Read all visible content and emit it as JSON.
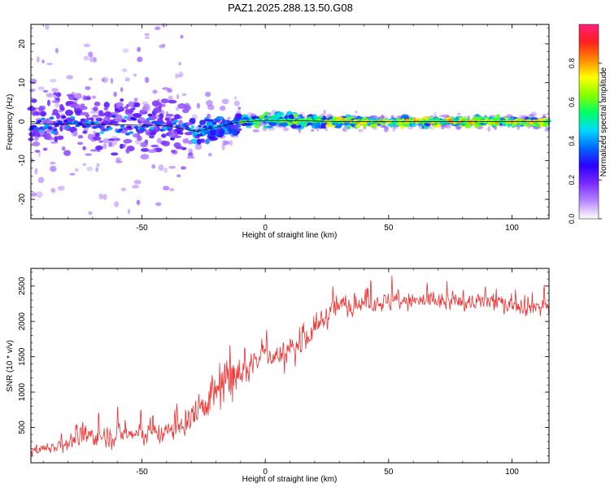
{
  "title": "PAZ1.2025.288.13.50.G08",
  "chart_data": [
    {
      "type": "heatmap",
      "title": "",
      "xlabel": "Height of straight line (km)",
      "ylabel": "Frequency (Hz)",
      "xlim": [
        -95,
        115
      ],
      "ylim": [
        -25,
        25
      ],
      "x_ticks": [
        -50,
        0,
        50,
        100
      ],
      "y_ticks": [
        -20,
        -10,
        0,
        10,
        20
      ],
      "colorbar": {
        "label": "Normalized spectral amplitude",
        "range": [
          0,
          1
        ],
        "ticks": [
          0.0,
          0.2,
          0.4,
          0.6,
          0.8
        ],
        "tick_labels": [
          "0.0",
          "0.2",
          "0.4",
          "0.6",
          "0.8"
        ],
        "colors": [
          "#ffffff",
          "#b787ff",
          "#7a2cff",
          "#2b00ff",
          "#0066ff",
          "#00d9ff",
          "#00ff66",
          "#88ff00",
          "#ffff00",
          "#ff8a00",
          "#ff1f1f",
          "#ff1f7a"
        ]
      },
      "trace_line": [
        [
          -95,
          -0.5
        ],
        [
          -40,
          -1.0
        ],
        [
          -28,
          -2.5
        ],
        [
          -20,
          -1.5
        ],
        [
          -12,
          -0.2
        ],
        [
          0,
          0.3
        ],
        [
          15,
          0.2
        ],
        [
          30,
          0
        ],
        [
          115,
          0
        ]
      ],
      "bands": [
        {
          "x_range": [
            -95,
            -30
          ],
          "y_spread": 8,
          "scatter_spread": 22,
          "amplitude": 0.25
        },
        {
          "x_range": [
            -30,
            -10
          ],
          "y_spread": 3,
          "scatter_spread": 6,
          "amplitude": 0.5
        },
        {
          "x_range": [
            -10,
            25
          ],
          "y_spread": 1.5,
          "scatter_spread": 2,
          "amplitude": 0.7
        },
        {
          "x_range": [
            25,
            115
          ],
          "y_spread": 1.0,
          "scatter_spread": 1.5,
          "amplitude": 0.85
        }
      ]
    },
    {
      "type": "line",
      "title": "",
      "xlabel": "Height of straight line (km)",
      "ylabel": "SNR (10 * v/v)",
      "xlim": [
        -95,
        115
      ],
      "ylim": [
        0,
        2750
      ],
      "x_ticks": [
        -50,
        0,
        50,
        100
      ],
      "y_ticks": [
        500,
        1000,
        1500,
        2000,
        2500
      ],
      "series": [
        {
          "name": "SNR",
          "color": "#ee3030",
          "envelope": [
            {
              "x": -95,
              "mean": 150,
              "noise": 120
            },
            {
              "x": -85,
              "mean": 250,
              "noise": 200
            },
            {
              "x": -70,
              "mean": 380,
              "noise": 300
            },
            {
              "x": -55,
              "mean": 400,
              "noise": 300
            },
            {
              "x": -40,
              "mean": 430,
              "noise": 300
            },
            {
              "x": -32,
              "mean": 550,
              "noise": 400
            },
            {
              "x": -25,
              "mean": 850,
              "noise": 500
            },
            {
              "x": -18,
              "mean": 1050,
              "noise": 700
            },
            {
              "x": -10,
              "mean": 1250,
              "noise": 500
            },
            {
              "x": -5,
              "mean": 1400,
              "noise": 350
            },
            {
              "x": 0,
              "mean": 1550,
              "noise": 300
            },
            {
              "x": 5,
              "mean": 1500,
              "noise": 400
            },
            {
              "x": 10,
              "mean": 1550,
              "noise": 450
            },
            {
              "x": 15,
              "mean": 1700,
              "noise": 400
            },
            {
              "x": 20,
              "mean": 1900,
              "noise": 350
            },
            {
              "x": 28,
              "mean": 2200,
              "noise": 300
            },
            {
              "x": 40,
              "mean": 2270,
              "noise": 250
            },
            {
              "x": 60,
              "mean": 2280,
              "noise": 250
            },
            {
              "x": 80,
              "mean": 2280,
              "noise": 250
            },
            {
              "x": 100,
              "mean": 2260,
              "noise": 270
            },
            {
              "x": 115,
              "mean": 2200,
              "noise": 280
            }
          ]
        }
      ]
    }
  ]
}
